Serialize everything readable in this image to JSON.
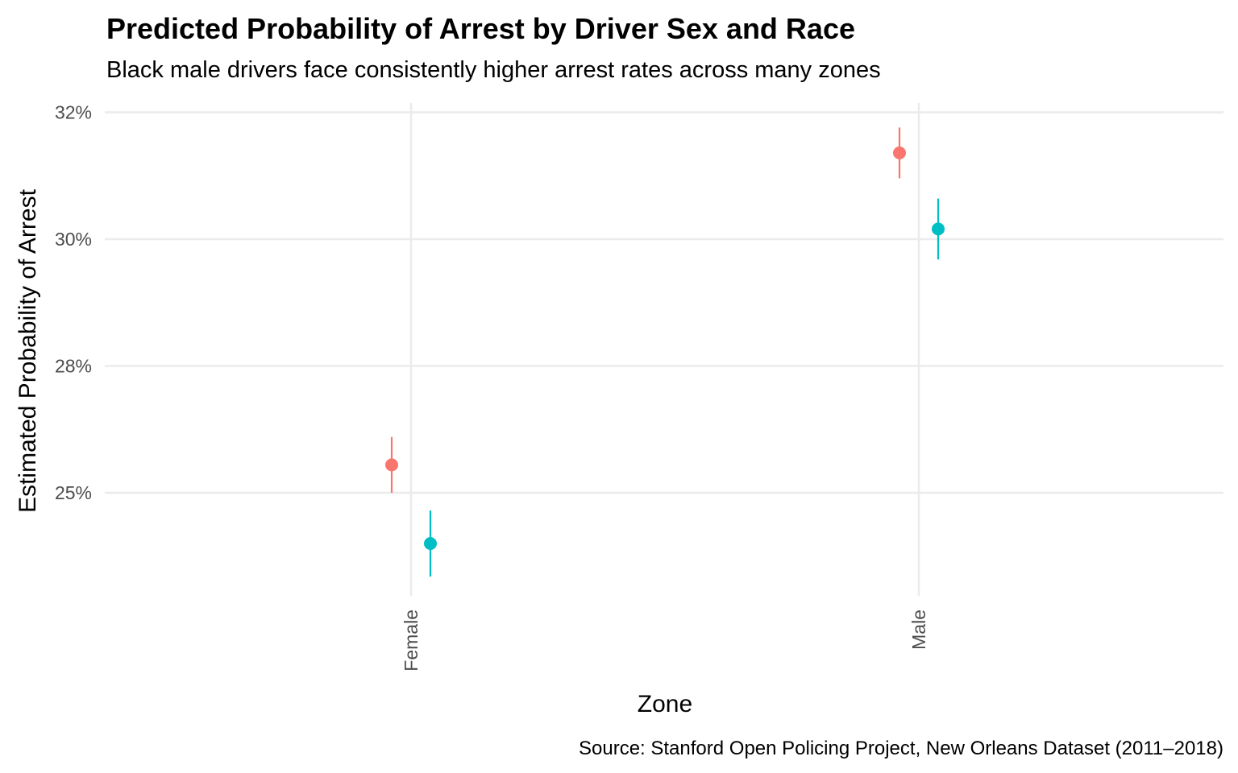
{
  "chart_data": {
    "type": "scatter",
    "title": "Predicted Probability of Arrest by Driver Sex and Race",
    "subtitle": "Black male drivers face consistently higher arrest rates across many zones",
    "caption": "Source: Stanford Open Policing Project, New Orleans Dataset (2011–2018)",
    "xlabel": "Zone",
    "ylabel": "Estimated Probability of Arrest",
    "categories": [
      "Female",
      "Male"
    ],
    "y_ticks": [
      25,
      27.5,
      30,
      32.5
    ],
    "y_tick_labels": [
      "25%",
      "28%",
      "30%",
      "32%"
    ],
    "ylim": [
      23,
      32.7
    ],
    "grid": true,
    "legend": "none",
    "series": [
      {
        "color": "#F8766D",
        "points": [
          {
            "x": "Female",
            "y": 25.55,
            "low": 25.0,
            "high": 26.1
          },
          {
            "x": "Male",
            "y": 31.7,
            "low": 31.2,
            "high": 32.2
          }
        ]
      },
      {
        "color": "#00BFC4",
        "points": [
          {
            "x": "Female",
            "y": 24.0,
            "low": 23.35,
            "high": 24.65
          },
          {
            "x": "Male",
            "y": 30.2,
            "low": 29.6,
            "high": 30.8
          }
        ]
      }
    ]
  }
}
